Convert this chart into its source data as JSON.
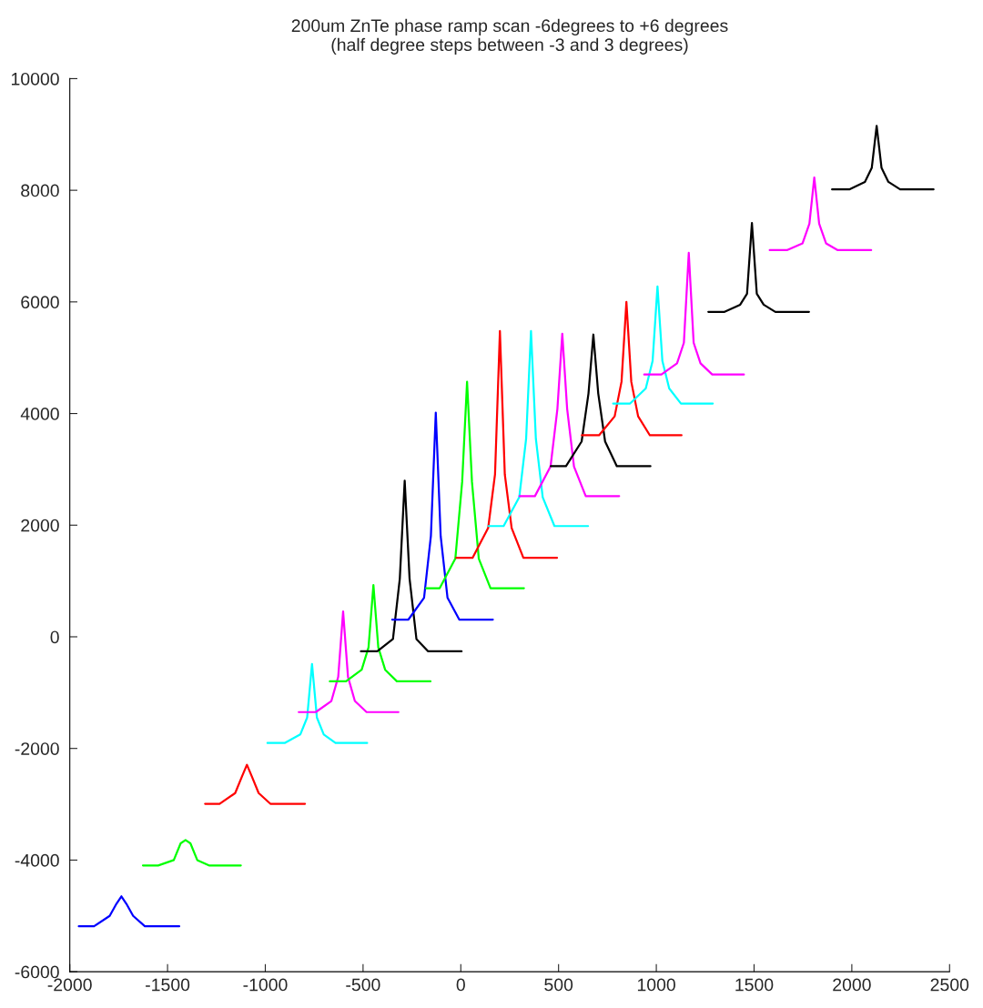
{
  "chart_data": {
    "type": "line",
    "title": "200um ZnTe phase ramp scan -6degrees to +6 degrees\n(half degree steps between -3 and 3 degrees)",
    "xlim": [
      -2000,
      2500
    ],
    "xticks": [
      -2000,
      -1500,
      -1000,
      -500,
      0,
      500,
      1000,
      1500,
      2000,
      2500
    ],
    "ylim": [
      -6000,
      10000
    ],
    "yticks": [
      -6000,
      -4000,
      -2000,
      0,
      2000,
      4000,
      6000,
      8000,
      10000
    ],
    "grid": false,
    "legend": false,
    "marker": "none",
    "line_style": "solid",
    "series": [
      {
        "color": "#0000ff",
        "x": [
          -1954,
          -1876,
          -1796,
          -1761,
          -1736,
          -1711,
          -1676,
          -1616,
          -1440
        ],
        "values": [
          -5186,
          -5186,
          -5000,
          -4780,
          -4650,
          -4780,
          -5000,
          -5186,
          -5186
        ]
      },
      {
        "color": "#00ff00",
        "x": [
          -1626,
          -1548,
          -1468,
          -1433,
          -1408,
          -1383,
          -1348,
          -1288,
          -1125
        ],
        "values": [
          -4097,
          -4097,
          -4000,
          -3700,
          -3642,
          -3700,
          -4000,
          -4097,
          -4097
        ]
      },
      {
        "color": "#ff0000",
        "x": [
          -1308,
          -1234,
          -1154,
          -1119,
          -1094,
          -1069,
          -1034,
          -974,
          -797
        ],
        "values": [
          -2992,
          -2992,
          -2800,
          -2500,
          -2293,
          -2500,
          -2800,
          -2992,
          -2992
        ]
      },
      {
        "color": "#00ffff",
        "x": [
          -989,
          -901,
          -821,
          -786,
          -761,
          -736,
          -701,
          -641,
          -479
        ],
        "values": [
          -1902,
          -1902,
          -1750,
          -1447,
          -488,
          -1447,
          -1750,
          -1902,
          -1902
        ]
      },
      {
        "color": "#ff00ff",
        "x": [
          -829,
          -742,
          -662,
          -627,
          -602,
          -577,
          -542,
          -482,
          -319
        ],
        "values": [
          -1349,
          -1349,
          -1150,
          -717,
          455,
          -717,
          -1150,
          -1349,
          -1349
        ]
      },
      {
        "color": "#00ff00",
        "x": [
          -670,
          -587,
          -507,
          -472,
          -447,
          -422,
          -387,
          -327,
          -155
        ],
        "values": [
          -797,
          -797,
          -590,
          -190,
          927,
          -190,
          -590,
          -797,
          -797
        ]
      },
      {
        "color": "#000000",
        "x": [
          -511,
          -427,
          -347,
          -312,
          -287,
          -262,
          -227,
          -167,
          4
        ],
        "values": [
          -260,
          -260,
          -40,
          1041,
          2797,
          1041,
          -40,
          -260,
          -260
        ]
      },
      {
        "color": "#0000ff",
        "x": [
          -351,
          -268,
          -188,
          -153,
          -128,
          -103,
          -68,
          -8,
          164
        ],
        "values": [
          309,
          309,
          700,
          1805,
          4016,
          1805,
          700,
          309,
          309
        ]
      },
      {
        "color": "#00ff00",
        "x": [
          -178,
          -108,
          -28,
          7,
          32,
          57,
          92,
          152,
          323
        ],
        "values": [
          870,
          870,
          1400,
          2780,
          4569,
          2780,
          1400,
          870,
          870
        ]
      },
      {
        "color": "#ff0000",
        "x": [
          -23,
          60,
          140,
          175,
          200,
          225,
          260,
          320,
          492
        ],
        "values": [
          1415,
          1415,
          1950,
          2910,
          5480,
          2910,
          1950,
          1415,
          1415
        ]
      },
      {
        "color": "#00ffff",
        "x": [
          141,
          219,
          299,
          334,
          359,
          384,
          419,
          479,
          651
        ],
        "values": [
          1984,
          1984,
          2500,
          3545,
          5480,
          3545,
          2500,
          1984,
          1984
        ]
      },
      {
        "color": "#ff00ff",
        "x": [
          300,
          379,
          459,
          494,
          519,
          544,
          579,
          639,
          810
        ],
        "values": [
          2520,
          2520,
          3050,
          4081,
          5431,
          4081,
          3050,
          2520,
          2520
        ]
      },
      {
        "color": "#000000",
        "x": [
          460,
          538,
          618,
          653,
          678,
          703,
          738,
          798,
          970
        ],
        "values": [
          3057,
          3057,
          3500,
          4358,
          5415,
          4358,
          3500,
          3057,
          3057
        ]
      },
      {
        "color": "#ff0000",
        "x": [
          619,
          707,
          787,
          822,
          847,
          872,
          907,
          967,
          1129
        ],
        "values": [
          3610,
          3610,
          3950,
          4569,
          6000,
          4569,
          3950,
          3610,
          3610
        ]
      },
      {
        "color": "#00ffff",
        "x": [
          779,
          866,
          946,
          981,
          1006,
          1031,
          1066,
          1126,
          1289
        ],
        "values": [
          4179,
          4179,
          4450,
          4943,
          6276,
          4943,
          4450,
          4179,
          4179
        ]
      },
      {
        "color": "#ff00ff",
        "x": [
          938,
          1026,
          1106,
          1141,
          1166,
          1191,
          1226,
          1286,
          1448
        ],
        "values": [
          4699,
          4699,
          4900,
          5268,
          6878,
          5268,
          4900,
          4699,
          4699
        ]
      },
      {
        "color": "#000000",
        "x": [
          1266,
          1349,
          1429,
          1464,
          1489,
          1514,
          1549,
          1609,
          1781
        ],
        "values": [
          5821,
          5821,
          5950,
          6146,
          7415,
          6146,
          5950,
          5821,
          5821
        ]
      },
      {
        "color": "#ff00ff",
        "x": [
          1580,
          1668,
          1748,
          1783,
          1808,
          1833,
          1868,
          1928,
          2099
        ],
        "values": [
          6927,
          6927,
          7050,
          7400,
          8228,
          7400,
          7050,
          6927,
          6927
        ]
      },
      {
        "color": "#000000",
        "x": [
          1899,
          1987,
          2067,
          2102,
          2127,
          2152,
          2187,
          2247,
          2418
        ],
        "values": [
          8016,
          8016,
          8150,
          8400,
          9154,
          8400,
          8150,
          8016,
          8016
        ]
      }
    ]
  }
}
